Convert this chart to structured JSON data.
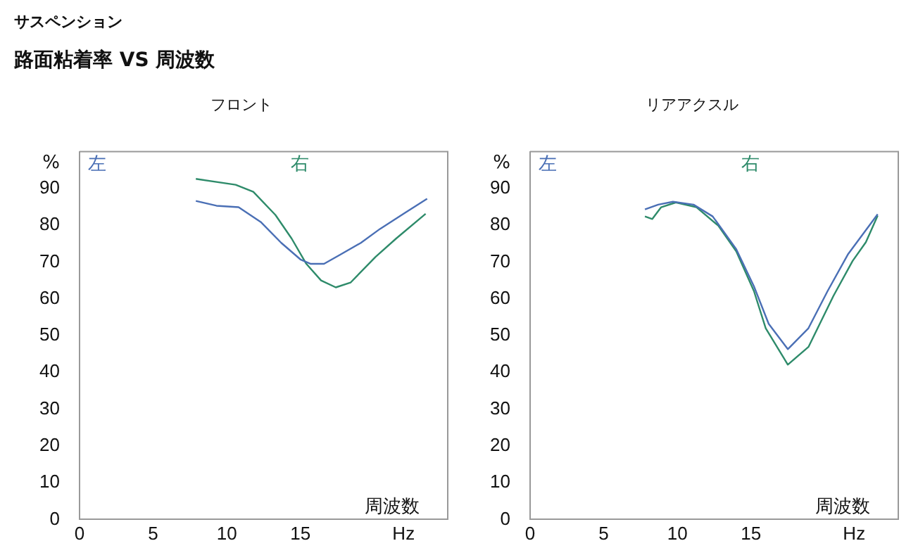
{
  "chart_data": [
    {
      "type": "line",
      "title": "フロント",
      "annotations": [
        "サスペンション",
        "路面粘着率 VS 周波数"
      ],
      "ylabel": "%",
      "xlabel": "周波数",
      "legend": "top",
      "grid": false,
      "marker": "none",
      "line_style": "solid",
      "xlim": [
        0,
        25
      ],
      "xticks": [
        0,
        5,
        10,
        15,
        {
          "value": 22,
          "label": "Hz"
        }
      ],
      "ylim": [
        0,
        100
      ],
      "yticks": [
        0,
        10,
        20,
        30,
        40,
        50,
        60,
        70,
        80,
        90
      ],
      "series": [
        {
          "name": "左",
          "color": "#4a6fb5",
          "x": [
            7.9,
            9.3,
            10.8,
            12.3,
            13.7,
            15.0,
            15.7,
            16.6,
            17.7,
            19.1,
            20.4,
            22.1,
            23.6
          ],
          "values": [
            86.6,
            85.3,
            84.9,
            80.9,
            75.2,
            70.7,
            69.5,
            69.5,
            72.0,
            75.2,
            79.0,
            83.4,
            87.2
          ]
        },
        {
          "name": "右",
          "color": "#2e8b6a",
          "x": [
            7.9,
            10.6,
            11.8,
            13.3,
            14.4,
            15.4,
            16.4,
            17.4,
            18.4,
            20.1,
            21.5,
            23.5
          ],
          "values": [
            92.6,
            91.0,
            89.1,
            82.8,
            76.4,
            69.5,
            65.0,
            63.1,
            64.4,
            71.4,
            76.4,
            83.1
          ]
        }
      ]
    },
    {
      "type": "line",
      "title": "リアアクスル",
      "ylabel": "%",
      "xlabel": "周波数",
      "legend": "top",
      "grid": false,
      "marker": "none",
      "line_style": "solid",
      "xlim": [
        0,
        25
      ],
      "xticks": [
        0,
        5,
        10,
        15,
        {
          "value": 22,
          "label": "Hz"
        }
      ],
      "ylim": [
        0,
        100
      ],
      "yticks": [
        0,
        10,
        20,
        30,
        40,
        50,
        60,
        70,
        80,
        90
      ],
      "series": [
        {
          "name": "左",
          "color": "#4a6fb5",
          "x": [
            7.8,
            8.7,
            9.7,
            11.1,
            12.4,
            14.0,
            15.2,
            16.2,
            17.5,
            18.9,
            20.2,
            21.6,
            23.6
          ],
          "values": [
            84.3,
            85.6,
            86.4,
            85.6,
            82.4,
            73.5,
            63.4,
            53.2,
            46.3,
            52.0,
            62.1,
            72.2,
            83.0
          ]
        },
        {
          "name": "右",
          "color": "#2e8b6a",
          "x": [
            7.8,
            8.3,
            8.9,
            9.9,
            11.3,
            12.8,
            14.0,
            15.2,
            16.0,
            17.5,
            18.9,
            20.6,
            21.9,
            22.8,
            23.6
          ],
          "values": [
            82.4,
            81.7,
            84.9,
            86.2,
            84.9,
            79.8,
            72.9,
            62.1,
            52.0,
            42.1,
            46.9,
            60.8,
            70.3,
            75.4,
            82.6
          ]
        }
      ]
    }
  ]
}
